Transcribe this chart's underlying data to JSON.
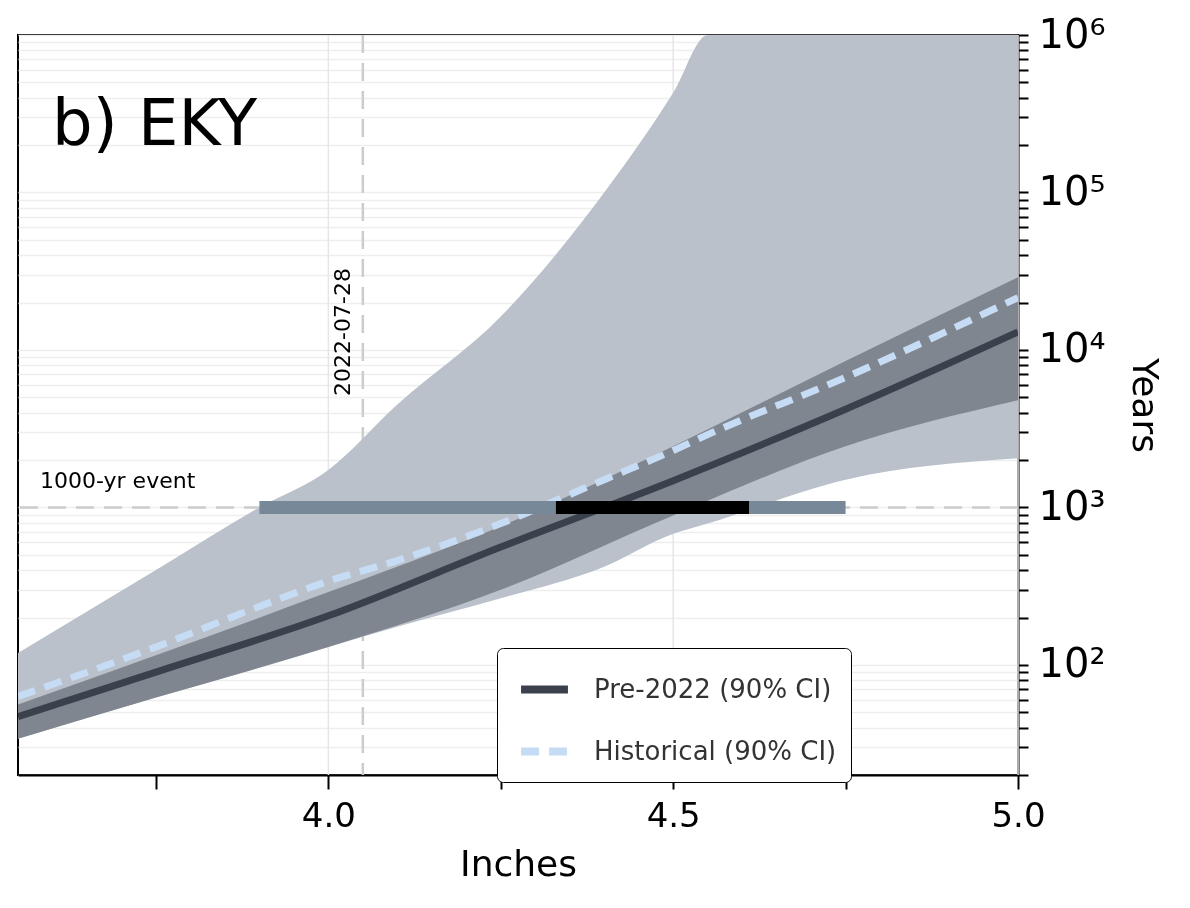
{
  "chart_data": {
    "type": "line",
    "title": "b) EKY",
    "xlabel": "Inches",
    "ylabel": "Years",
    "log": "y",
    "grid": true,
    "legend": "bottom right",
    "xlim": [
      3.55,
      5.0
    ],
    "xticks": [
      {
        "value": 3.75,
        "label": null
      },
      {
        "value": 4.0,
        "label": "4.0"
      },
      {
        "value": 4.25,
        "label": null
      },
      {
        "value": 4.5,
        "label": "4.5"
      },
      {
        "value": 4.75,
        "label": null
      },
      {
        "value": 5.0,
        "label": "5.0"
      }
    ],
    "ylim": [
      20,
      1000000
    ],
    "yticks": [
      {
        "value": 20,
        "label": null
      },
      {
        "value": 30,
        "label": null
      },
      {
        "value": 40,
        "label": null
      },
      {
        "value": 50,
        "label": null
      },
      {
        "value": 60,
        "label": null
      },
      {
        "value": 70,
        "label": null
      },
      {
        "value": 80,
        "label": null
      },
      {
        "value": 90,
        "label": null
      },
      {
        "value": 100,
        "label": "10²"
      },
      {
        "value": 200,
        "label": null
      },
      {
        "value": 300,
        "label": null
      },
      {
        "value": 400,
        "label": null
      },
      {
        "value": 500,
        "label": null
      },
      {
        "value": 600,
        "label": null
      },
      {
        "value": 700,
        "label": null
      },
      {
        "value": 800,
        "label": null
      },
      {
        "value": 900,
        "label": null
      },
      {
        "value": 1000,
        "label": "10³"
      },
      {
        "value": 2000,
        "label": null
      },
      {
        "value": 3000,
        "label": null
      },
      {
        "value": 4000,
        "label": null
      },
      {
        "value": 5000,
        "label": null
      },
      {
        "value": 6000,
        "label": null
      },
      {
        "value": 7000,
        "label": null
      },
      {
        "value": 8000,
        "label": null
      },
      {
        "value": 9000,
        "label": null
      },
      {
        "value": 10000,
        "label": "10⁴"
      },
      {
        "value": 20000,
        "label": null
      },
      {
        "value": 30000,
        "label": null
      },
      {
        "value": 40000,
        "label": null
      },
      {
        "value": 50000,
        "label": null
      },
      {
        "value": 60000,
        "label": null
      },
      {
        "value": 70000,
        "label": null
      },
      {
        "value": 80000,
        "label": null
      },
      {
        "value": 90000,
        "label": null
      },
      {
        "value": 100000,
        "label": "10⁵"
      },
      {
        "value": 200000,
        "label": null
      },
      {
        "value": 300000,
        "label": null
      },
      {
        "value": 400000,
        "label": null
      },
      {
        "value": 500000,
        "label": null
      },
      {
        "value": 600000,
        "label": null
      },
      {
        "value": 700000,
        "label": null
      },
      {
        "value": 800000,
        "label": null
      },
      {
        "value": 900000,
        "label": null
      },
      {
        "value": 1000000,
        "label": "10⁶"
      }
    ],
    "series": [
      {
        "name": "Pre-2022 (90% CI)",
        "color": "#3a414c",
        "line_style": "solid",
        "x": [
          3.55,
          3.75,
          4.0,
          4.25,
          4.5,
          4.75,
          5.0
        ],
        "values": [
          47,
          90,
          205,
          560,
          1480,
          4200,
          13000
        ],
        "lower": [
          34,
          62,
          130,
          300,
          890,
          2450,
          4800
        ],
        "upper": [
          56,
          115,
          290,
          760,
          2450,
          8500,
          29000
        ]
      },
      {
        "name": "Historical (90% CI)",
        "color": "#c6dcf5",
        "line_style": "dashed",
        "x": [
          3.55,
          3.75,
          3.9,
          4.0,
          4.1,
          4.25,
          4.4,
          4.5,
          4.55,
          4.75,
          5.0
        ],
        "values": [
          63,
          130,
          235,
          340,
          460,
          790,
          1500,
          2300,
          2900,
          6700,
          21500
        ],
        "lower": [
          34,
          62,
          96,
          130,
          175,
          265,
          420,
          680,
          790,
          1500,
          2050
        ],
        "upper": [
          119,
          400,
          1000,
          1730,
          4500,
          16300,
          100000,
          430000,
          1000000,
          1000000,
          1000000
        ]
      },
      {
        "type": "line",
        "color": "#778899",
        "x": [
          3.9,
          4.75
        ],
        "values": [
          1000,
          1000
        ]
      },
      {
        "type": "line",
        "color": "#000000",
        "x": [
          4.33,
          4.61
        ],
        "values": [
          1000,
          1000
        ]
      }
    ],
    "annotations": [
      {
        "text": "2022-07-28",
        "x": 4.05,
        "y": 13000
      }
    ],
    "ref_lines": [
      {
        "axis": "x",
        "value": 4.05,
        "color": "#cccccc",
        "line_style": "dashed"
      },
      {
        "axis": "y",
        "value": 1000,
        "label": "1000-yr event",
        "color": "#cccccc",
        "line_style": "dashed"
      }
    ]
  }
}
